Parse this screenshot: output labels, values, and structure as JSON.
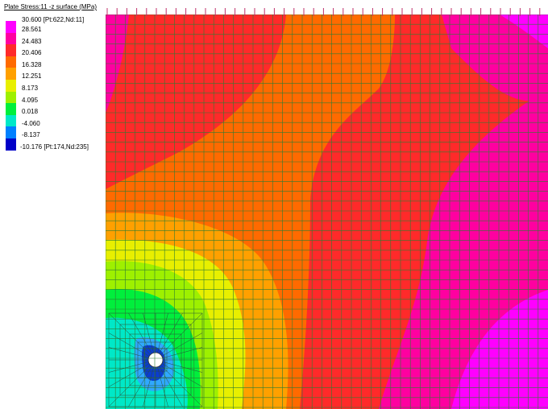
{
  "legend": {
    "title": "Plate Stress:11 -z surface (MPa)",
    "max_label": "30.600 [Pt:622,Nd:11]",
    "min_label": "-10.176 [Pt:174,Nd:235]",
    "levels": [
      "28.561",
      "24.483",
      "20.406",
      "16.328",
      "12.251",
      "8.173",
      "4.095",
      "0.018",
      "-4.060",
      "-8.137"
    ],
    "colors": [
      "#ff00ff",
      "#ff00a0",
      "#ff2a2a",
      "#ff6a00",
      "#ffa000",
      "#e8ef00",
      "#9ef000",
      "#00ef3c",
      "#00e8c8",
      "#0080ff",
      "#0000c8"
    ]
  },
  "mesh": {
    "grid_color": "#2e7d32",
    "hole_fill": "#ffffff"
  }
}
